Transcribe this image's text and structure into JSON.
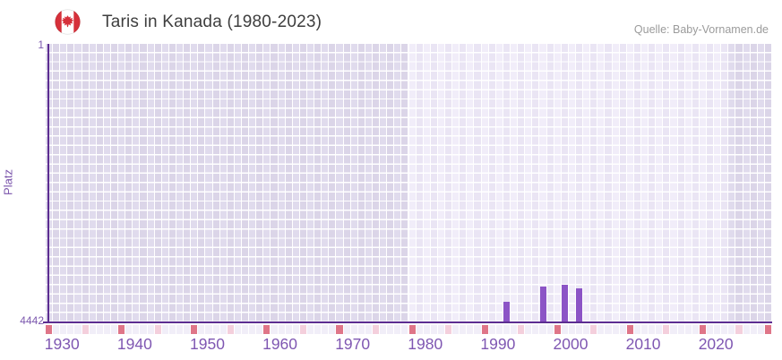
{
  "header": {
    "title": "Taris in Kanada (1980-2023)",
    "source": "Quelle: Baby-Vornamen.de",
    "flag_icon": "canada-flag-icon"
  },
  "chart_data": {
    "type": "bar",
    "title": "Taris in Kanada (1980-2023)",
    "xlabel": "",
    "ylabel": "Platz",
    "y_axis": {
      "top_label": "1",
      "bottom_label": "4442",
      "min": 1,
      "max": 4442,
      "inverted": true
    },
    "x_axis": {
      "start_year": 1928,
      "end_year": 2027,
      "tick_years": [
        1930,
        1940,
        1950,
        1960,
        1970,
        1980,
        1990,
        2000,
        2010,
        2020
      ],
      "tick_labels": [
        "1930",
        "1940",
        "1950",
        "1960",
        "1970",
        "1980",
        "1990",
        "2000",
        "2010",
        "2020"
      ]
    },
    "series": [
      {
        "name": "Platz",
        "points": [
          {
            "year": 1991,
            "rank": 4120
          },
          {
            "year": 1996,
            "rank": 3868
          },
          {
            "year": 1999,
            "rank": 3845
          },
          {
            "year": 2001,
            "rank": 3904
          }
        ]
      }
    ],
    "highlight_band": {
      "start_year": 1978,
      "end_year": 2021,
      "note": "data coverage band shown lighter"
    },
    "axis_markers": {
      "red_years": [
        1928,
        1938,
        1948,
        1958,
        1968,
        1978,
        1988,
        1998,
        2008,
        2018,
        2027
      ],
      "pink_years": [
        1933,
        1943,
        1953,
        1963,
        1973,
        1983,
        1993,
        2003,
        2013,
        2023
      ]
    },
    "legend": {
      "visible": false
    },
    "grid": "checkerboard",
    "colors": {
      "bar": "#8c54c6",
      "axis_line": "#5c2d91",
      "tick_label": "#7f57b2",
      "band_cell_even": "#f1edf9",
      "band_cell_odd": "#eae5f4",
      "outer_cell_even": "#e0dbed",
      "outer_cell_odd": "#dbd5e8",
      "strip_cell": "#f1eef8",
      "marker_red": "#df7588",
      "marker_pink": "#f4cfdc",
      "title_text": "#3e3e3e",
      "source_text": "#9b9b9b"
    }
  }
}
